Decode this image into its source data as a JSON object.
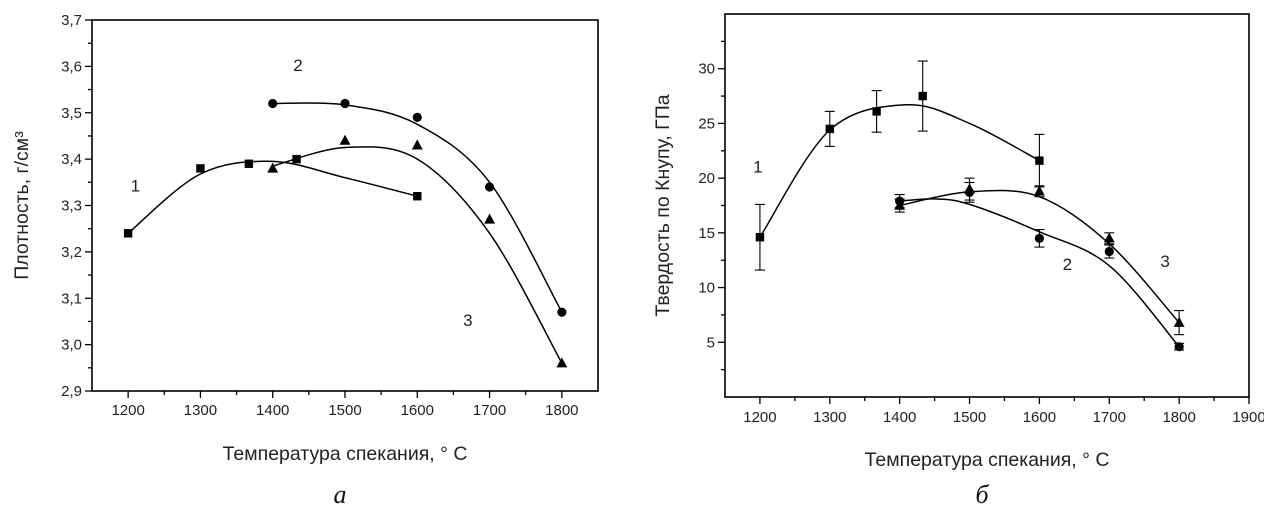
{
  "chart_data": [
    {
      "type": "line",
      "panel_label": "а",
      "xlabel": "Температура спекания, ° С",
      "ylabel": "Плотность, г/см³",
      "xlim": [
        1150,
        1850
      ],
      "ylim": [
        2.9,
        3.7
      ],
      "x_ticks": [
        1200,
        1300,
        1400,
        1500,
        1600,
        1700,
        1800
      ],
      "x_tick_labels": [
        "1200",
        "1300",
        "1400",
        "1500",
        "1600",
        "1700",
        "1800"
      ],
      "y_ticks": [
        2.9,
        3.0,
        3.1,
        3.2,
        3.3,
        3.4,
        3.5,
        3.6,
        3.7
      ],
      "y_tick_labels": [
        "2,9",
        "3,0",
        "3,1",
        "3,2",
        "3,3",
        "3,4",
        "3,5",
        "3,6",
        "3,7"
      ],
      "grid": false,
      "series": [
        {
          "label": "1",
          "marker": "square",
          "points": [
            [
              1200,
              3.24
            ],
            [
              1300,
              3.38
            ],
            [
              1367,
              3.39
            ],
            [
              1433,
              3.4
            ],
            [
              1600,
              3.32
            ]
          ],
          "curve": [
            [
              1200,
              3.24
            ],
            [
              1300,
              3.368
            ],
            [
              1400,
              3.395
            ],
            [
              1500,
              3.36
            ],
            [
              1600,
              3.32
            ]
          ],
          "label_pos": [
            1210,
            3.33
          ]
        },
        {
          "label": "2",
          "marker": "circle",
          "points": [
            [
              1400,
              3.52
            ],
            [
              1500,
              3.52
            ],
            [
              1600,
              3.49
            ],
            [
              1700,
              3.34
            ],
            [
              1800,
              3.07
            ]
          ],
          "curve": [
            [
              1400,
              3.52
            ],
            [
              1500,
              3.517
            ],
            [
              1600,
              3.475
            ],
            [
              1700,
              3.35
            ],
            [
              1800,
              3.07
            ]
          ],
          "label_pos": [
            1435,
            3.59
          ]
        },
        {
          "label": "3",
          "marker": "triangle",
          "points": [
            [
              1400,
              3.38
            ],
            [
              1500,
              3.44
            ],
            [
              1600,
              3.43
            ],
            [
              1700,
              3.27
            ],
            [
              1800,
              2.96
            ]
          ],
          "curve": [
            [
              1400,
              3.385
            ],
            [
              1500,
              3.425
            ],
            [
              1600,
              3.4
            ],
            [
              1700,
              3.24
            ],
            [
              1800,
              2.96
            ]
          ],
          "label_pos": [
            1670,
            3.04
          ]
        }
      ]
    },
    {
      "type": "line",
      "panel_label": "б",
      "xlabel": "Температура спекания, ° С",
      "ylabel": "Твердость по Кнупу, ГПа",
      "xlim": [
        1150,
        1900
      ],
      "ylim": [
        0,
        35
      ],
      "x_ticks": [
        1200,
        1300,
        1400,
        1500,
        1600,
        1700,
        1800,
        1900
      ],
      "x_tick_labels": [
        "1200",
        "1300",
        "1400",
        "1500",
        "1600",
        "1700",
        "1800",
        "1900"
      ],
      "y_ticks": [
        5,
        10,
        15,
        20,
        25,
        30
      ],
      "y_tick_labels": [
        "5",
        "10",
        "15",
        "20",
        "25",
        "30"
      ],
      "grid": false,
      "series": [
        {
          "label": "1",
          "marker": "square",
          "points": [
            [
              1200,
              14.6
            ],
            [
              1300,
              24.5
            ],
            [
              1367,
              26.1
            ],
            [
              1433,
              27.5
            ],
            [
              1600,
              21.6
            ]
          ],
          "errors": [
            3.0,
            1.6,
            1.9,
            3.2,
            2.4
          ],
          "curve": [
            [
              1200,
              14.6
            ],
            [
              1300,
              24.4
            ],
            [
              1410,
              26.7
            ],
            [
              1500,
              25.0
            ],
            [
              1600,
              21.6
            ]
          ],
          "label_pos": [
            1197,
            20.5
          ]
        },
        {
          "label": "2",
          "marker": "circle",
          "points": [
            [
              1400,
              17.9
            ],
            [
              1500,
              18.7
            ],
            [
              1600,
              14.5
            ],
            [
              1700,
              13.3
            ],
            [
              1800,
              4.6
            ]
          ],
          "errors": [
            0.6,
            0.9,
            0.8,
            0.6,
            0.3
          ],
          "curve": [
            [
              1400,
              17.9
            ],
            [
              1450,
              18.1
            ],
            [
              1500,
              17.6
            ],
            [
              1600,
              15.1
            ],
            [
              1700,
              12.0
            ],
            [
              1800,
              4.6
            ]
          ],
          "label_pos": [
            1640,
            11.6
          ]
        },
        {
          "label": "3",
          "marker": "triangle",
          "points": [
            [
              1400,
              17.5
            ],
            [
              1500,
              19.0
            ],
            [
              1600,
              18.8
            ],
            [
              1700,
              14.5
            ],
            [
              1800,
              6.8
            ]
          ],
          "errors": [
            0.6,
            1.0,
            0.5,
            0.5,
            1.1
          ],
          "curve": [
            [
              1400,
              17.5
            ],
            [
              1500,
              18.75
            ],
            [
              1600,
              18.3
            ],
            [
              1700,
              14.0
            ],
            [
              1800,
              6.8
            ]
          ],
          "label_pos": [
            1780,
            11.9
          ]
        }
      ]
    }
  ]
}
